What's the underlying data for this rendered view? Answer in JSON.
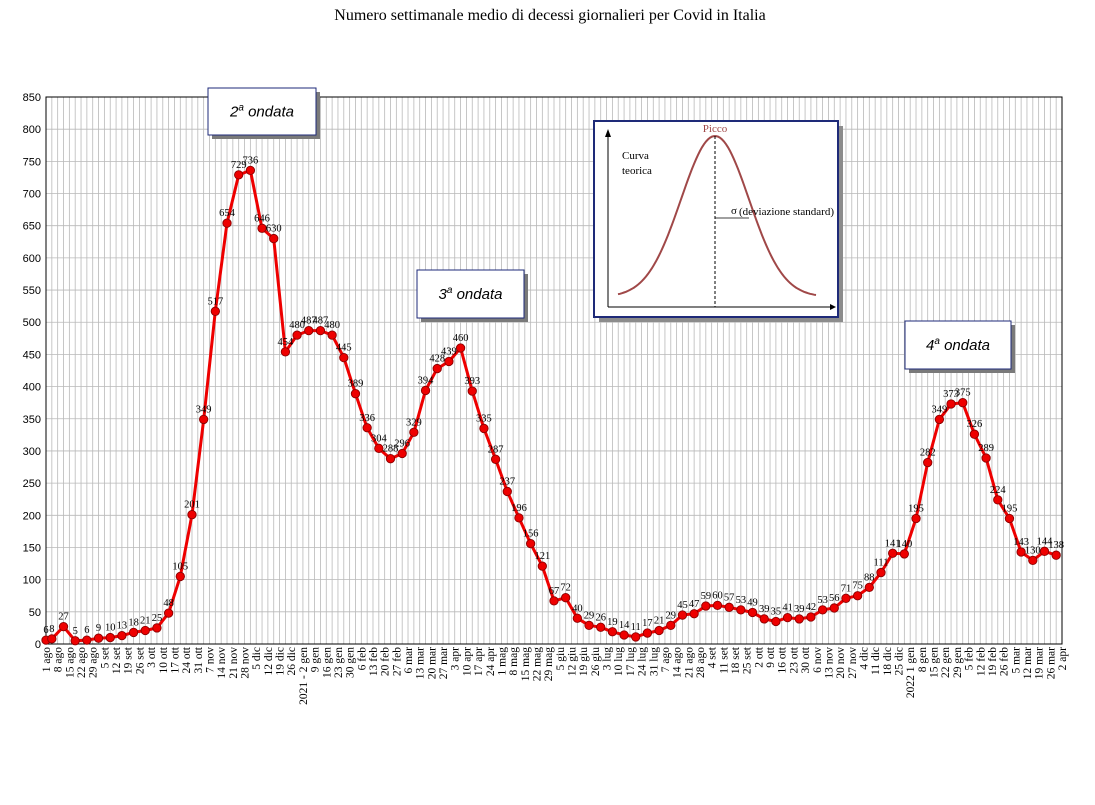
{
  "chart_data": {
    "type": "line",
    "title": "Numero settimanale medio di decessi giornalieri per Covid in Italia",
    "ylim": [
      0,
      850
    ],
    "yticks": [
      0,
      50,
      100,
      150,
      200,
      250,
      300,
      350,
      400,
      450,
      500,
      550,
      600,
      650,
      700,
      750,
      800,
      850
    ],
    "grid": true,
    "series": [
      {
        "color": "#ee0000",
        "points": [
          {
            "x": "1 ago",
            "y": 6
          },
          {
            "x": "",
            "y": 8
          },
          {
            "x": "8 ago",
            "y": null
          },
          {
            "x": "",
            "y": 27
          },
          {
            "x": "15 ago",
            "y": null
          },
          {
            "x": "",
            "y": 5
          },
          {
            "x": "22 ago",
            "y": null
          },
          {
            "x": "",
            "y": 6
          },
          {
            "x": "29 ago",
            "y": null
          },
          {
            "x": "",
            "y": 9
          },
          {
            "x": "5 set",
            "y": null
          },
          {
            "x": "",
            "y": 10
          },
          {
            "x": "12 set",
            "y": null
          },
          {
            "x": "",
            "y": 13
          },
          {
            "x": "19 set",
            "y": null
          },
          {
            "x": "",
            "y": 18
          },
          {
            "x": "26 set",
            "y": null
          },
          {
            "x": "",
            "y": 21
          },
          {
            "x": "3 ott",
            "y": null
          },
          {
            "x": "",
            "y": 25
          },
          {
            "x": "10 ott",
            "y": null
          },
          {
            "x": "",
            "y": 48
          },
          {
            "x": "17 ott",
            "y": null
          },
          {
            "x": "",
            "y": 105
          },
          {
            "x": "24 ott",
            "y": null
          },
          {
            "x": "",
            "y": 201
          },
          {
            "x": "31 ott",
            "y": null
          },
          {
            "x": "",
            "y": 349
          },
          {
            "x": "7 nov",
            "y": null
          },
          {
            "x": "",
            "y": 517
          },
          {
            "x": "14 nov",
            "y": null
          },
          {
            "x": "",
            "y": 654
          },
          {
            "x": "21 nov",
            "y": null
          },
          {
            "x": "",
            "y": 729
          },
          {
            "x": "28 nov",
            "y": null
          },
          {
            "x": "",
            "y": 736
          },
          {
            "x": "5 dic",
            "y": null
          },
          {
            "x": "",
            "y": 646
          },
          {
            "x": "12 dic",
            "y": null
          },
          {
            "x": "",
            "y": 630
          },
          {
            "x": "19 dic",
            "y": null
          },
          {
            "x": "",
            "y": 454
          },
          {
            "x": "26 dic",
            "y": null
          },
          {
            "x": "",
            "y": 480
          },
          {
            "x": "2021 - 2 gen",
            "y": null
          },
          {
            "x": "",
            "y": 487
          },
          {
            "x": "9 gen",
            "y": null
          },
          {
            "x": "",
            "y": 487
          },
          {
            "x": "16 gen",
            "y": null
          },
          {
            "x": "",
            "y": 480
          },
          {
            "x": "23 gen",
            "y": null
          },
          {
            "x": "",
            "y": 445
          },
          {
            "x": "30 gen",
            "y": null
          },
          {
            "x": "",
            "y": 389
          },
          {
            "x": "6 feb",
            "y": null
          },
          {
            "x": "",
            "y": 336
          },
          {
            "x": "13 feb",
            "y": null
          },
          {
            "x": "",
            "y": 304
          },
          {
            "x": "20 feb",
            "y": null
          },
          {
            "x": "",
            "y": 288
          },
          {
            "x": "27 feb",
            "y": null
          },
          {
            "x": "",
            "y": 296
          },
          {
            "x": "6 mar",
            "y": null
          },
          {
            "x": "",
            "y": 329
          },
          {
            "x": "13 mar",
            "y": null
          },
          {
            "x": "",
            "y": 394
          },
          {
            "x": "20 mar",
            "y": null
          },
          {
            "x": "",
            "y": 428
          },
          {
            "x": "27 mar",
            "y": null
          },
          {
            "x": "",
            "y": 439
          },
          {
            "x": "3 apr",
            "y": null
          },
          {
            "x": "",
            "y": 460
          },
          {
            "x": "10 apr",
            "y": null
          },
          {
            "x": "",
            "y": 393
          },
          {
            "x": "17 apr",
            "y": null
          },
          {
            "x": "",
            "y": 335
          },
          {
            "x": "24 apr",
            "y": null
          },
          {
            "x": "",
            "y": 287
          },
          {
            "x": "1 mag",
            "y": null
          },
          {
            "x": "",
            "y": 237
          },
          {
            "x": "8 mag",
            "y": null
          },
          {
            "x": "",
            "y": 196
          },
          {
            "x": "15 mag",
            "y": null
          },
          {
            "x": "",
            "y": 156
          },
          {
            "x": "22 mag",
            "y": null
          },
          {
            "x": "",
            "y": 121
          },
          {
            "x": "29 mag",
            "y": null
          },
          {
            "x": "",
            "y": 67
          },
          {
            "x": "5 giu",
            "y": null
          },
          {
            "x": "",
            "y": 72
          },
          {
            "x": "12 giu",
            "y": null
          },
          {
            "x": "",
            "y": 40
          },
          {
            "x": "19 giu",
            "y": null
          },
          {
            "x": "",
            "y": 29
          },
          {
            "x": "26 giu",
            "y": null
          },
          {
            "x": "",
            "y": 26
          },
          {
            "x": "3 lug",
            "y": null
          },
          {
            "x": "",
            "y": 19
          },
          {
            "x": "10 lug",
            "y": null
          },
          {
            "x": "",
            "y": 14
          },
          {
            "x": "17 lug",
            "y": null
          },
          {
            "x": "",
            "y": 11
          },
          {
            "x": "24 lug",
            "y": null
          },
          {
            "x": "",
            "y": 17
          },
          {
            "x": "31 lug",
            "y": null
          },
          {
            "x": "",
            "y": 21
          },
          {
            "x": "7 ago",
            "y": null
          },
          {
            "x": "",
            "y": 29
          },
          {
            "x": "14 ago",
            "y": null
          },
          {
            "x": "",
            "y": 45
          },
          {
            "x": "21 ago",
            "y": null
          },
          {
            "x": "",
            "y": 47
          },
          {
            "x": "28 ago",
            "y": null
          },
          {
            "x": "",
            "y": 59
          },
          {
            "x": "4 set",
            "y": null
          },
          {
            "x": "",
            "y": 60
          },
          {
            "x": "11 set",
            "y": null
          },
          {
            "x": "",
            "y": 57
          },
          {
            "x": "18 set",
            "y": null
          },
          {
            "x": "",
            "y": 53
          },
          {
            "x": "25 set",
            "y": null
          },
          {
            "x": "",
            "y": 49
          },
          {
            "x": "2 ott",
            "y": null
          },
          {
            "x": "",
            "y": 39
          },
          {
            "x": "9 ott",
            "y": null
          },
          {
            "x": "",
            "y": 35
          },
          {
            "x": "16 ott",
            "y": null
          },
          {
            "x": "",
            "y": 41
          },
          {
            "x": "23 ott",
            "y": null
          },
          {
            "x": "",
            "y": 39
          },
          {
            "x": "30 ott",
            "y": null
          },
          {
            "x": "",
            "y": 42
          },
          {
            "x": "6 nov",
            "y": null
          },
          {
            "x": "",
            "y": 53
          },
          {
            "x": "13 nov",
            "y": null
          },
          {
            "x": "",
            "y": 56
          },
          {
            "x": "20 nov",
            "y": null
          },
          {
            "x": "",
            "y": 71
          },
          {
            "x": "27 nov",
            "y": null
          },
          {
            "x": "",
            "y": 75
          },
          {
            "x": "4 dic",
            "y": null
          },
          {
            "x": "",
            "y": 88
          },
          {
            "x": "11 dic",
            "y": null
          },
          {
            "x": "",
            "y": 111
          },
          {
            "x": "18 dic",
            "y": null
          },
          {
            "x": "",
            "y": 141
          },
          {
            "x": "25 dic",
            "y": null
          },
          {
            "x": "",
            "y": 140
          },
          {
            "x": "2022 1 gen",
            "y": null
          },
          {
            "x": "",
            "y": 195
          },
          {
            "x": "8 gen",
            "y": null
          },
          {
            "x": "",
            "y": 282
          },
          {
            "x": "15 gen",
            "y": null
          },
          {
            "x": "",
            "y": 349
          },
          {
            "x": "22 gen",
            "y": null
          },
          {
            "x": "",
            "y": 373
          },
          {
            "x": "29 gen",
            "y": null
          },
          {
            "x": "",
            "y": 375
          },
          {
            "x": "5 feb",
            "y": null
          },
          {
            "x": "",
            "y": 326
          },
          {
            "x": "12 feb",
            "y": null
          },
          {
            "x": "",
            "y": 289
          },
          {
            "x": "19 feb",
            "y": null
          },
          {
            "x": "",
            "y": 224
          },
          {
            "x": "26 feb",
            "y": null
          },
          {
            "x": "",
            "y": 195
          },
          {
            "x": "5 mar",
            "y": null
          },
          {
            "x": "",
            "y": 143
          },
          {
            "x": "12 mar",
            "y": null
          },
          {
            "x": "",
            "y": 130
          },
          {
            "x": "19 mar",
            "y": null
          },
          {
            "x": "",
            "y": 144
          },
          {
            "x": "26 mar",
            "y": null
          },
          {
            "x": "",
            "y": 138
          },
          {
            "x": "2 apr",
            "y": null
          }
        ]
      }
    ],
    "annotations": [
      {
        "id": "wave2",
        "base": "2",
        "sup": "a",
        "rest": " ondata"
      },
      {
        "id": "wave3",
        "base": "3",
        "sup": "a",
        "rest": " ondata"
      },
      {
        "id": "wave4",
        "base": "4",
        "sup": "a",
        "rest": " ondata"
      }
    ],
    "inset": {
      "peak_label": "Picco",
      "curve_label_1": "Curva",
      "curve_label_2": "teorica",
      "sigma_symbol": "σ",
      "sigma_label": "(deviazione standard)"
    }
  }
}
